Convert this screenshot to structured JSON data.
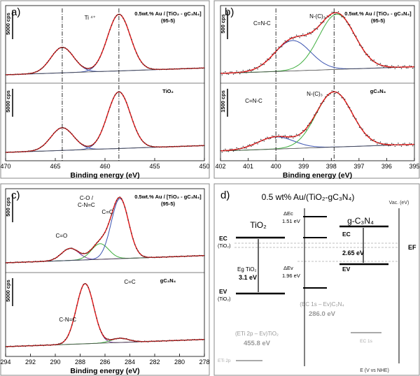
{
  "chart_data": [
    {
      "panel_label": "a)",
      "type": "line",
      "xlabel": "Binding energy (eV)",
      "xlim": [
        470,
        450
      ],
      "x_ticks": [
        "470",
        "465",
        "460",
        "455",
        "450"
      ],
      "subplots": [
        {
          "sample_label": "0.5wt.% Au / [TiO₂ - gC₃N₄]",
          "sample_ratio": "(95-5)",
          "scale_bar": "5000 cps",
          "annotations": [
            {
              "text": "Ti ⁴⁺",
              "x": 461.5
            }
          ],
          "peaks": [
            {
              "x": 464.3,
              "height": 0.45
            },
            {
              "x": 458.6,
              "height": 1.0
            }
          ]
        },
        {
          "sample_label": "TiO₂",
          "scale_bar": "5000 cps",
          "peaks": [
            {
              "x": 464.3,
              "height": 0.4
            },
            {
              "x": 458.6,
              "height": 1.0
            }
          ]
        }
      ],
      "reference_lines": [
        464.3,
        458.6
      ]
    },
    {
      "panel_label": "b)",
      "type": "line",
      "xlabel": "Binding energy (eV)",
      "xlim": [
        402,
        395
      ],
      "x_ticks": [
        "402",
        "401",
        "400",
        "399",
        "398",
        "397",
        "396",
        "395"
      ],
      "subplots": [
        {
          "sample_label": "0.5wt.% Au / [TiO₂ - gC₃N₄]",
          "sample_ratio": "(95-5)",
          "scale_bar": "500 cps",
          "annotations": [
            {
              "text": "C=N-C",
              "x": 400.5
            },
            {
              "text": "N-(C)₃",
              "x": 398.5
            }
          ],
          "peaks": [
            {
              "x": 399.4,
              "height": 0.55
            },
            {
              "x": 397.8,
              "height": 1.0
            }
          ]
        },
        {
          "sample_label": "gC₃N₄",
          "scale_bar": "1500 cps",
          "annotations": [
            {
              "text": "C=N-C",
              "x": 400.8
            },
            {
              "text": "N-(C)₃",
              "x": 398.6
            }
          ],
          "peaks": [
            {
              "x": 400.0,
              "height": 0.22
            },
            {
              "x": 397.9,
              "height": 1.0
            }
          ]
        }
      ],
      "reference_lines": [
        400.0,
        397.9
      ]
    },
    {
      "panel_label": "c)",
      "type": "line",
      "xlabel": "Binding energy (eV)",
      "xlim": [
        294,
        278
      ],
      "x_ticks": [
        "294",
        "292",
        "290",
        "288",
        "286",
        "284",
        "282",
        "280",
        "278"
      ],
      "subplots": [
        {
          "sample_label": "0.5wt.% Au / [TiO₂ - gC₃N₄]",
          "sample_ratio": "(95-5)",
          "scale_bar": "500 cps",
          "annotations": [
            {
              "text": "C=O",
              "x": 289.5
            },
            {
              "text": "C-O /",
              "x": 287.5
            },
            {
              "text": "C-N=C",
              "x": 287.5
            },
            {
              "text": "C=C",
              "x": 285.8
            }
          ],
          "peaks": [
            {
              "x": 288.8,
              "height": 0.2
            },
            {
              "x": 286.4,
              "height": 0.26
            },
            {
              "x": 284.8,
              "height": 1.0
            }
          ]
        },
        {
          "sample_label": "gC₃N₄",
          "scale_bar": "5000 cps",
          "annotations": [
            {
              "text": "C-N=C",
              "x": 289.0
            },
            {
              "text": "C=C",
              "x": 284.0
            }
          ],
          "peaks": [
            {
              "x": 287.6,
              "height": 1.0
            },
            {
              "x": 284.8,
              "height": 0.07
            }
          ]
        }
      ]
    },
    {
      "panel_label": "d)",
      "type": "diagram",
      "title": "0.5 wt% Au/(TiO₂-gC₃N₄)",
      "materials": [
        "TiO₂",
        "g-C₃N₄"
      ],
      "energies_eV": {
        "Eg_TiO2": "3.1 eV",
        "Eg_C3N4": "2.65 eV",
        "dEc": "1.51 eV",
        "dEv": "1.96 eV",
        "ETi2p_minus_Ev": "455.8 eV",
        "EC1s_minus_Ev": "286.0 eV"
      },
      "axis_top": "Vac. (eV)",
      "axis_bottom": "E (V vs NHE)"
    }
  ]
}
